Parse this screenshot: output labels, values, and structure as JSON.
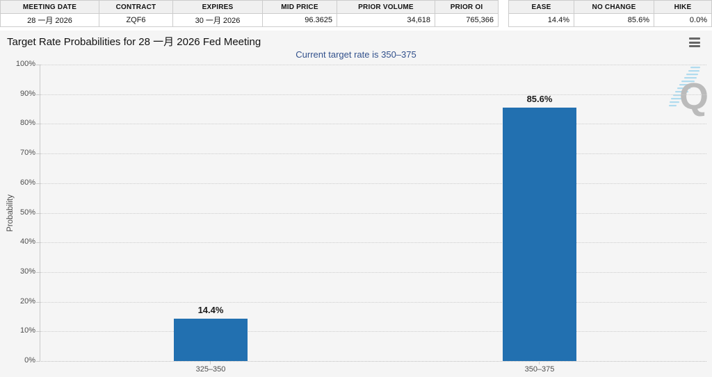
{
  "table_left": {
    "headers": [
      "MEETING DATE",
      "CONTRACT",
      "EXPIRES",
      "MID PRICE",
      "PRIOR VOLUME",
      "PRIOR OI"
    ],
    "values": [
      "28 一月 2026",
      "ZQF6",
      "30 一月 2026",
      "96.3625",
      "34,618",
      "765,366"
    ]
  },
  "table_right": {
    "headers": [
      "EASE",
      "NO CHANGE",
      "HIKE"
    ],
    "values": [
      "14.4%",
      "85.6%",
      "0.0%"
    ]
  },
  "chart": {
    "title": "Target Rate Probabilities for 28 一月 2026 Fed Meeting",
    "subtitle": "Current target rate is 350–375",
    "menu_icon": "hamburger-menu-icon",
    "watermark_icon": "quikstrike-q-watermark"
  },
  "chart_data": {
    "type": "bar",
    "categories": [
      "325–350",
      "350–375"
    ],
    "values": [
      14.4,
      85.6
    ],
    "value_labels": [
      "14.4%",
      "85.6%"
    ],
    "title": "Target Rate Probabilities for 28 一月 2026 Fed Meeting",
    "subtitle": "Current target rate is 350–375",
    "xlabel": "",
    "ylabel": "Probability",
    "ylim": [
      0,
      100
    ],
    "yticks": [
      "0%",
      "10%",
      "20%",
      "30%",
      "40%",
      "50%",
      "60%",
      "70%",
      "80%",
      "90%",
      "100%"
    ],
    "grid": "dotted-horizontal",
    "legend": "none",
    "bar_color": "#2270b0"
  },
  "colors": {
    "bar": "#2270b0",
    "subtitle_text": "#32518c",
    "chart_background": "#f5f5f5",
    "table_header_background": "#f0f0f0",
    "axis_text": "#4d4d4d"
  }
}
